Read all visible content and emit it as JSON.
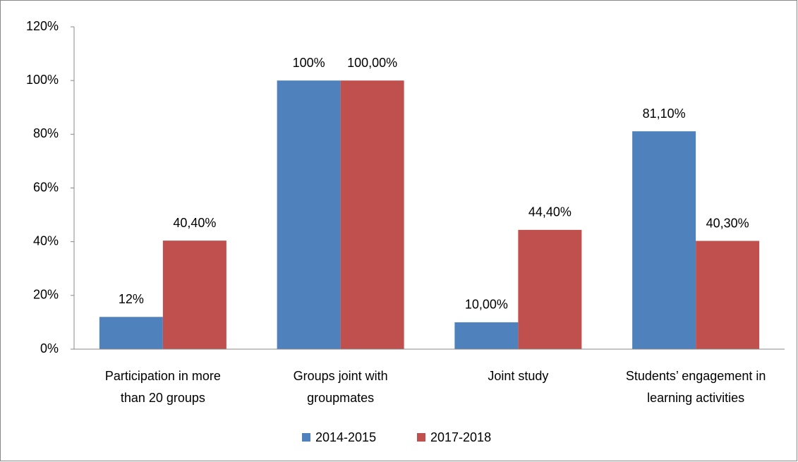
{
  "chart_data": {
    "type": "bar",
    "categories": [
      "Participation in more than 20 groups",
      "Groups joint with groupmates",
      "Joint study",
      "Students’ engagement in learning activities"
    ],
    "series": [
      {
        "name": "2014-2015",
        "color": "#4f81bd",
        "values": [
          12,
          100,
          10,
          81.1
        ],
        "value_labels": [
          "12%",
          "100%",
          "10,00%",
          "81,10%"
        ]
      },
      {
        "name": "2017-2018",
        "color": "#c0504d",
        "values": [
          40.4,
          100,
          44.4,
          40.3
        ],
        "value_labels": [
          "40,40%",
          "100,00%",
          "44,40%",
          "40,30%"
        ]
      }
    ],
    "ylim": [
      0,
      120
    ],
    "yticks": [
      {
        "value": 0,
        "label": "0%"
      },
      {
        "value": 20,
        "label": "20%"
      },
      {
        "value": 40,
        "label": "40%"
      },
      {
        "value": 60,
        "label": "60%"
      },
      {
        "value": 80,
        "label": "80%"
      },
      {
        "value": 100,
        "label": "100%"
      },
      {
        "value": 120,
        "label": "120%"
      }
    ],
    "legend": "bottom"
  }
}
